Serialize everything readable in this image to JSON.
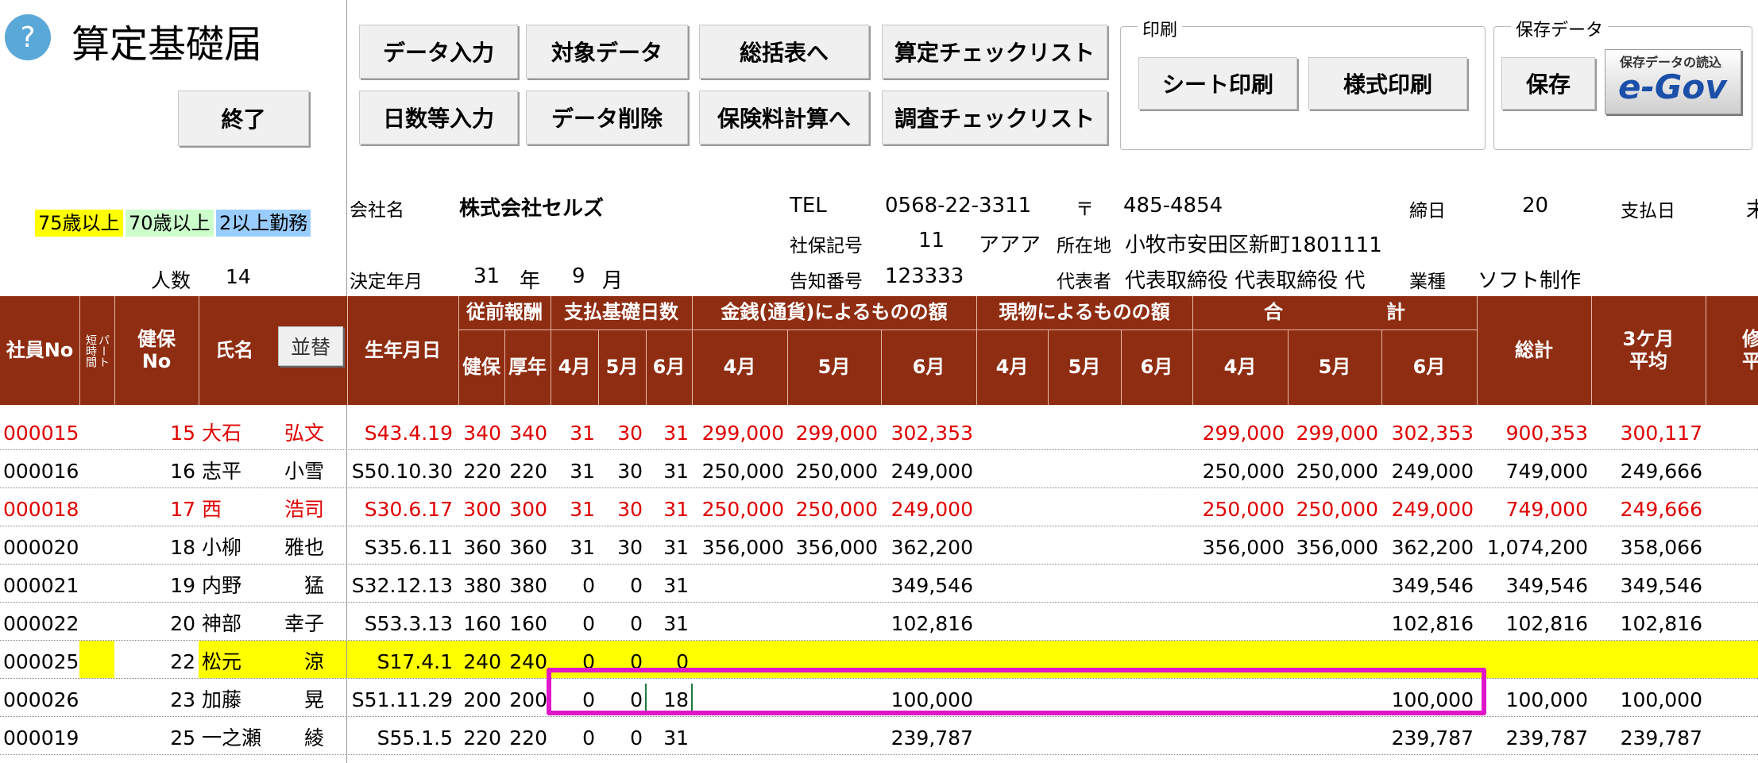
{
  "app": {
    "title": "算定基礎届",
    "help_glyph": "?"
  },
  "colors": {
    "header": "#8f2d12",
    "yellow": "#ffff00",
    "green": "#ccffcc",
    "blue": "#99ccff",
    "highlight": "#e016c8",
    "red_text": "#e00000"
  },
  "buttons": {
    "exit": "終了",
    "data_input": "データ入力",
    "target_data": "対象データ",
    "summary": "総括表へ",
    "santei_check": "算定チェックリスト",
    "days_input": "日数等入力",
    "data_delete": "データ削除",
    "premium_calc": "保険料計算へ",
    "survey_check": "調査チェックリスト",
    "sheet_print": "シート印刷",
    "form_print": "様式印刷",
    "save": "保存",
    "sort": "並替"
  },
  "groups": {
    "print": "印刷",
    "save_data": "保存データ"
  },
  "egov": {
    "caption": "保存データの読込",
    "logo": "e-Gov"
  },
  "legend": {
    "age75": "75歳以上",
    "age70": "70歳以上",
    "multi": "2以上勤務"
  },
  "count": {
    "label": "人数",
    "value": "14"
  },
  "company": {
    "name_label": "会社名",
    "name": "株式会社セルズ",
    "decision_label": "決定年月",
    "decision_year": "31",
    "year_unit": "年",
    "decision_month": "9",
    "month_unit": "月",
    "tel_label": "TEL",
    "tel": "0568-22-3311",
    "zip_label": "〒",
    "zip": "485-4854",
    "close_label": "締日",
    "close": "20",
    "pay_label": "支払日",
    "pay": "末",
    "insurance_label": "社保記号",
    "insurance_no": "11",
    "insurance_kana": "アアア",
    "address_label": "所在地",
    "address": "小牧市安田区新町1801111",
    "notice_label": "告知番号",
    "notice": "123333",
    "rep_label": "代表者",
    "rep": "代表取締役 代表取締役 代",
    "industry_label": "業種",
    "industry": "ソフト制作"
  },
  "headers": {
    "emp_no": "社員No",
    "short": "短時間",
    "part": "パート",
    "kenpo_no_1": "健保",
    "kenpo_no_2": "No",
    "name": "氏名",
    "birth": "生年月日",
    "prev_pay": "従前報酬",
    "kenpo": "健保",
    "kounen": "厚年",
    "days": "支払基礎日数",
    "cash": "金銭(通貨)によるものの額",
    "kind": "現物によるものの額",
    "total_1": "合",
    "total_2": "計",
    "m4": "4月",
    "m5": "5月",
    "m6": "6月",
    "grand": "総計",
    "avg_1": "3ケ月",
    "avg_2": "平均",
    "rev_1": "修",
    "rev_2": "平"
  },
  "rows": [
    {
      "emp": "000015",
      "kno": "15",
      "last": "大石",
      "first": "弘文",
      "birth": "S43.4.19",
      "kp": "340",
      "ky": "340",
      "d4": "31",
      "d5": "30",
      "d6": "31",
      "c4": "299,000",
      "c5": "299,000",
      "c6": "302,353",
      "t4": "299,000",
      "t5": "299,000",
      "t6": "302,353",
      "sum": "900,353",
      "avg": "300,117"
    },
    {
      "emp": "000016",
      "kno": "16",
      "last": "志平",
      "first": "小雪",
      "birth": "S50.10.30",
      "kp": "220",
      "ky": "220",
      "d4": "31",
      "d5": "30",
      "d6": "31",
      "c4": "250,000",
      "c5": "250,000",
      "c6": "249,000",
      "t4": "250,000",
      "t5": "250,000",
      "t6": "249,000",
      "sum": "749,000",
      "avg": "249,666"
    },
    {
      "emp": "000018",
      "kno": "17",
      "last": "西",
      "first": "浩司",
      "birth": "S30.6.17",
      "kp": "300",
      "ky": "300",
      "d4": "31",
      "d5": "30",
      "d6": "31",
      "c4": "250,000",
      "c5": "250,000",
      "c6": "249,000",
      "t4": "250,000",
      "t5": "250,000",
      "t6": "249,000",
      "sum": "749,000",
      "avg": "249,666"
    },
    {
      "emp": "000020",
      "kno": "18",
      "last": "小柳",
      "first": "雅也",
      "birth": "S35.6.11",
      "kp": "360",
      "ky": "360",
      "d4": "31",
      "d5": "30",
      "d6": "31",
      "c4": "356,000",
      "c5": "356,000",
      "c6": "362,200",
      "t4": "356,000",
      "t5": "356,000",
      "t6": "362,200",
      "sum": "1,074,200",
      "avg": "358,066"
    },
    {
      "emp": "000021",
      "kno": "19",
      "last": "内野",
      "first": "猛",
      "birth": "S32.12.13",
      "kp": "380",
      "ky": "380",
      "d4": "0",
      "d5": "0",
      "d6": "31",
      "c4": "",
      "c5": "",
      "c6": "349,546",
      "t4": "",
      "t5": "",
      "t6": "349,546",
      "sum": "349,546",
      "avg": "349,546"
    },
    {
      "emp": "000022",
      "kno": "20",
      "last": "神部",
      "first": "幸子",
      "birth": "S53.3.13",
      "kp": "160",
      "ky": "160",
      "d4": "0",
      "d5": "0",
      "d6": "31",
      "c4": "",
      "c5": "",
      "c6": "102,816",
      "t4": "",
      "t5": "",
      "t6": "102,816",
      "sum": "102,816",
      "avg": "102,816"
    },
    {
      "emp": "000025",
      "kno": "22",
      "last": "松元",
      "first": "涼",
      "birth": "S17.4.1",
      "kp": "240",
      "ky": "240",
      "d4": "0",
      "d5": "0",
      "d6": "0",
      "c4": "",
      "c5": "",
      "c6": "",
      "t4": "",
      "t5": "",
      "t6": "",
      "sum": "",
      "avg": ""
    },
    {
      "emp": "000026",
      "kno": "23",
      "last": "加藤",
      "first": "晃",
      "birth": "S51.11.29",
      "kp": "200",
      "ky": "200",
      "d4": "0",
      "d5": "0",
      "d6": "18",
      "c4": "",
      "c5": "",
      "c6": "100,000",
      "t4": "",
      "t5": "",
      "t6": "100,000",
      "sum": "100,000",
      "avg": "100,000"
    },
    {
      "emp": "000019",
      "kno": "25",
      "last": "一之瀬",
      "first": "綾",
      "birth": "S55.1.5",
      "kp": "220",
      "ky": "220",
      "d4": "0",
      "d5": "0",
      "d6": "31",
      "c4": "",
      "c5": "",
      "c6": "239,787",
      "t4": "",
      "t5": "",
      "t6": "239,787",
      "sum": "239,787",
      "avg": "239,787"
    }
  ]
}
